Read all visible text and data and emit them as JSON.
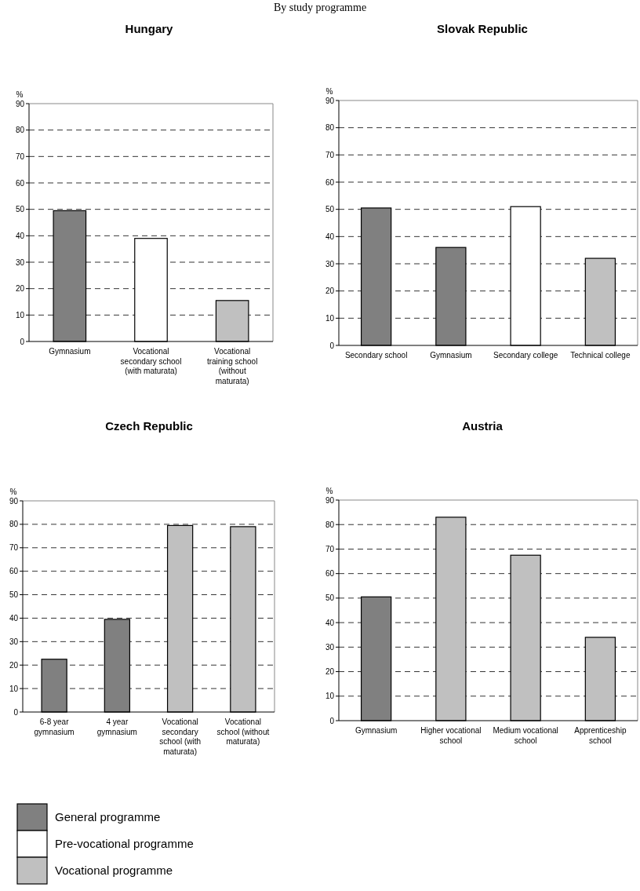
{
  "chart_data": [
    {
      "type": "bar",
      "title": "Hungary",
      "annotations": [
        "By study programme"
      ],
      "ylabel": "%",
      "categories": [
        "Gymnasium",
        "Vocational secondary school (with maturata)",
        "Vocational training school (without maturata)"
      ],
      "series": [
        {
          "name": "General programme",
          "color": "#808080",
          "values": [
            49.5,
            null,
            null
          ]
        },
        {
          "name": "Pre-vocational programme",
          "color": "#ffffff",
          "values": [
            null,
            39,
            null
          ]
        },
        {
          "name": "Vocational programme",
          "color": "#c0c0c0",
          "values": [
            null,
            null,
            15.5
          ]
        }
      ],
      "ylim": [
        0,
        90
      ],
      "yticks": [
        0,
        10,
        20,
        30,
        40,
        50,
        60,
        70,
        80,
        90
      ],
      "grid": "y",
      "legend": "bottom left"
    },
    {
      "type": "bar",
      "title": "Slovak Republic",
      "ylabel": "%",
      "categories": [
        "Secondary school",
        "Gymnasium",
        "Secondary college",
        "Technical college"
      ],
      "series": [
        {
          "color": "#808080",
          "values": [
            50.5,
            36,
            null,
            null
          ]
        },
        {
          "color": "#ffffff",
          "values": [
            null,
            null,
            51,
            null
          ]
        },
        {
          "color": "#c0c0c0",
          "values": [
            null,
            null,
            null,
            32
          ]
        }
      ],
      "ylim": [
        0,
        90
      ],
      "yticks": [
        0,
        10,
        20,
        30,
        40,
        50,
        60,
        70,
        80,
        90
      ],
      "grid": "y"
    },
    {
      "type": "bar",
      "title": "Czech Republic",
      "ylabel": "%",
      "categories": [
        "6-8 year gymnasium",
        "4 year gymnasium",
        "Vocational secondary school (with maturata)",
        "Vocational school (without maturata)"
      ],
      "series": [
        {
          "color": "#808080",
          "values": [
            22.5,
            39.5,
            null,
            null
          ]
        },
        {
          "color": "#c0c0c0",
          "values": [
            null,
            null,
            79.5,
            79
          ]
        }
      ],
      "ylim": [
        0,
        90
      ],
      "yticks": [
        0,
        10,
        20,
        30,
        40,
        50,
        60,
        70,
        80,
        90
      ],
      "grid": "y"
    },
    {
      "type": "bar",
      "title": "Austria",
      "ylabel": "%",
      "categories": [
        "Gymnasium",
        "Higher vocational school",
        "Medium vocational school",
        "Apprenticeship school"
      ],
      "series": [
        {
          "color": "#808080",
          "values": [
            50.5,
            null,
            null,
            null
          ]
        },
        {
          "color": "#c0c0c0",
          "values": [
            null,
            83,
            67.5,
            34
          ]
        }
      ],
      "ylim": [
        0,
        90
      ],
      "yticks": [
        0,
        10,
        20,
        30,
        40,
        50,
        60,
        70,
        80,
        90
      ],
      "grid": "y"
    }
  ]
}
